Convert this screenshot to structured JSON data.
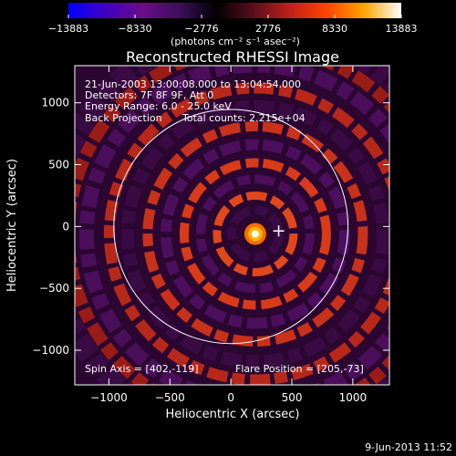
{
  "chart_data": {
    "type": "heatmap",
    "title": "Reconstructed RHESSI Image",
    "xlabel": "Heliocentric X (arcsec)",
    "ylabel": "Heliocentric Y (arcsec)",
    "xlim": [
      -1280,
      1300
    ],
    "ylim": [
      -1280,
      1300
    ],
    "x_ticks": [
      -1000,
      -500,
      0,
      500,
      1000
    ],
    "y_ticks": [
      -1000,
      -500,
      0,
      500,
      1000
    ],
    "x_tick_labels": [
      "−1000",
      "−500",
      "0",
      "500",
      "1000"
    ],
    "y_tick_labels": [
      "−1000",
      "−500",
      "0",
      "500",
      "1000"
    ],
    "colorbar": {
      "min": -13883,
      "max": 13883,
      "ticks": [
        -13883,
        -8330,
        -2776,
        2776,
        8330,
        13883
      ],
      "tick_labels": [
        "−13883",
        "−8330",
        "−2776",
        "2776",
        "8330",
        "13883"
      ],
      "unit_label": "(photons cm⁻² s⁻¹ asec⁻²)",
      "colors": [
        "#0000ff",
        "#4000c0",
        "#6a0d8a",
        "#3d0f5c",
        "#000000",
        "#5a0f1e",
        "#c0201a",
        "#ff4500",
        "#ffa500",
        "#ffffff"
      ]
    },
    "annotations": {
      "time_range": "21-Jun-2003 13:00:08.000 to 13:04:54.000",
      "detectors": "Detectors: 7F 8F 9F, Att 0",
      "energy_range": "Energy Range: 6.0 - 25.0 keV",
      "method": "Back Projection",
      "total_counts": "Total counts: 2.215e+04",
      "spin_axis": "Spin Axis = [402,-119]",
      "flare_position": "Flare Position = [205,-73]"
    },
    "flare_position": [
      205,
      -73
    ],
    "spin_axis": [
      402,
      -119
    ],
    "solar_limb_radius_arcsec": 960,
    "source_peak": [
      200,
      -60
    ]
  },
  "footer": {
    "timestamp": "9-Jun-2013 11:52"
  }
}
